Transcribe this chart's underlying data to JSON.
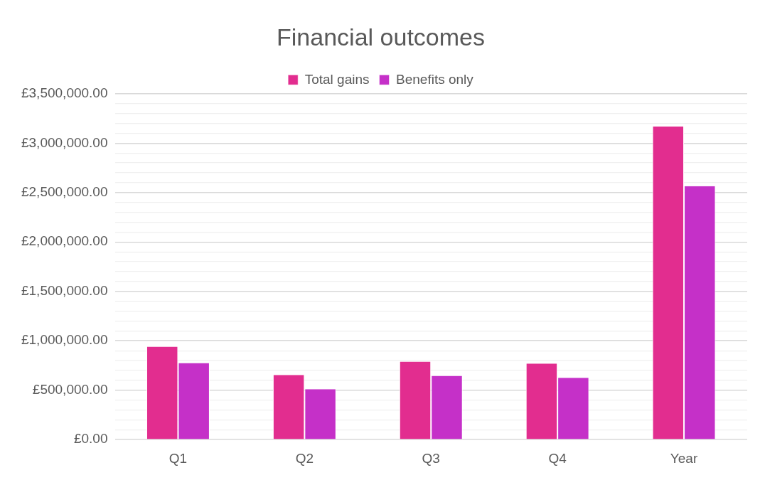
{
  "chart_data": {
    "type": "bar",
    "title": "Financial outcomes",
    "categories": [
      "Q1",
      "Q2",
      "Q3",
      "Q4",
      "Year"
    ],
    "series": [
      {
        "name": "Total gains",
        "color": "#e22d8f",
        "values": [
          940000,
          655000,
          790000,
          770000,
          3170000
        ]
      },
      {
        "name": "Benefits only",
        "color": "#c530c8",
        "values": [
          775000,
          510000,
          645000,
          625000,
          2565000
        ]
      }
    ],
    "ylim": [
      0,
      3500000
    ],
    "yticks": [
      {
        "value": 0,
        "label": "£0.00"
      },
      {
        "value": 100000,
        "label": null
      },
      {
        "value": 200000,
        "label": null
      },
      {
        "value": 300000,
        "label": null
      },
      {
        "value": 400000,
        "label": null
      },
      {
        "value": 500000,
        "label": "£500,000.00"
      },
      {
        "value": 600000,
        "label": null
      },
      {
        "value": 700000,
        "label": null
      },
      {
        "value": 800000,
        "label": null
      },
      {
        "value": 900000,
        "label": null
      },
      {
        "value": 1000000,
        "label": "£1,000,000.00"
      },
      {
        "value": 1100000,
        "label": null
      },
      {
        "value": 1200000,
        "label": null
      },
      {
        "value": 1300000,
        "label": null
      },
      {
        "value": 1400000,
        "label": null
      },
      {
        "value": 1500000,
        "label": "£1,500,000.00"
      },
      {
        "value": 1600000,
        "label": null
      },
      {
        "value": 1700000,
        "label": null
      },
      {
        "value": 1800000,
        "label": null
      },
      {
        "value": 1900000,
        "label": null
      },
      {
        "value": 2000000,
        "label": "£2,000,000.00"
      },
      {
        "value": 2100000,
        "label": null
      },
      {
        "value": 2200000,
        "label": null
      },
      {
        "value": 2300000,
        "label": null
      },
      {
        "value": 2400000,
        "label": null
      },
      {
        "value": 2500000,
        "label": "£2,500,000.00"
      },
      {
        "value": 2600000,
        "label": null
      },
      {
        "value": 2700000,
        "label": null
      },
      {
        "value": 2800000,
        "label": null
      },
      {
        "value": 2900000,
        "label": null
      },
      {
        "value": 3000000,
        "label": "£3,000,000.00"
      },
      {
        "value": 3100000,
        "label": null
      },
      {
        "value": 3200000,
        "label": null
      },
      {
        "value": 3300000,
        "label": null
      },
      {
        "value": 3400000,
        "label": null
      },
      {
        "value": 3500000,
        "label": "£3,500,000.00"
      }
    ],
    "grid": "y",
    "legend": "top"
  }
}
